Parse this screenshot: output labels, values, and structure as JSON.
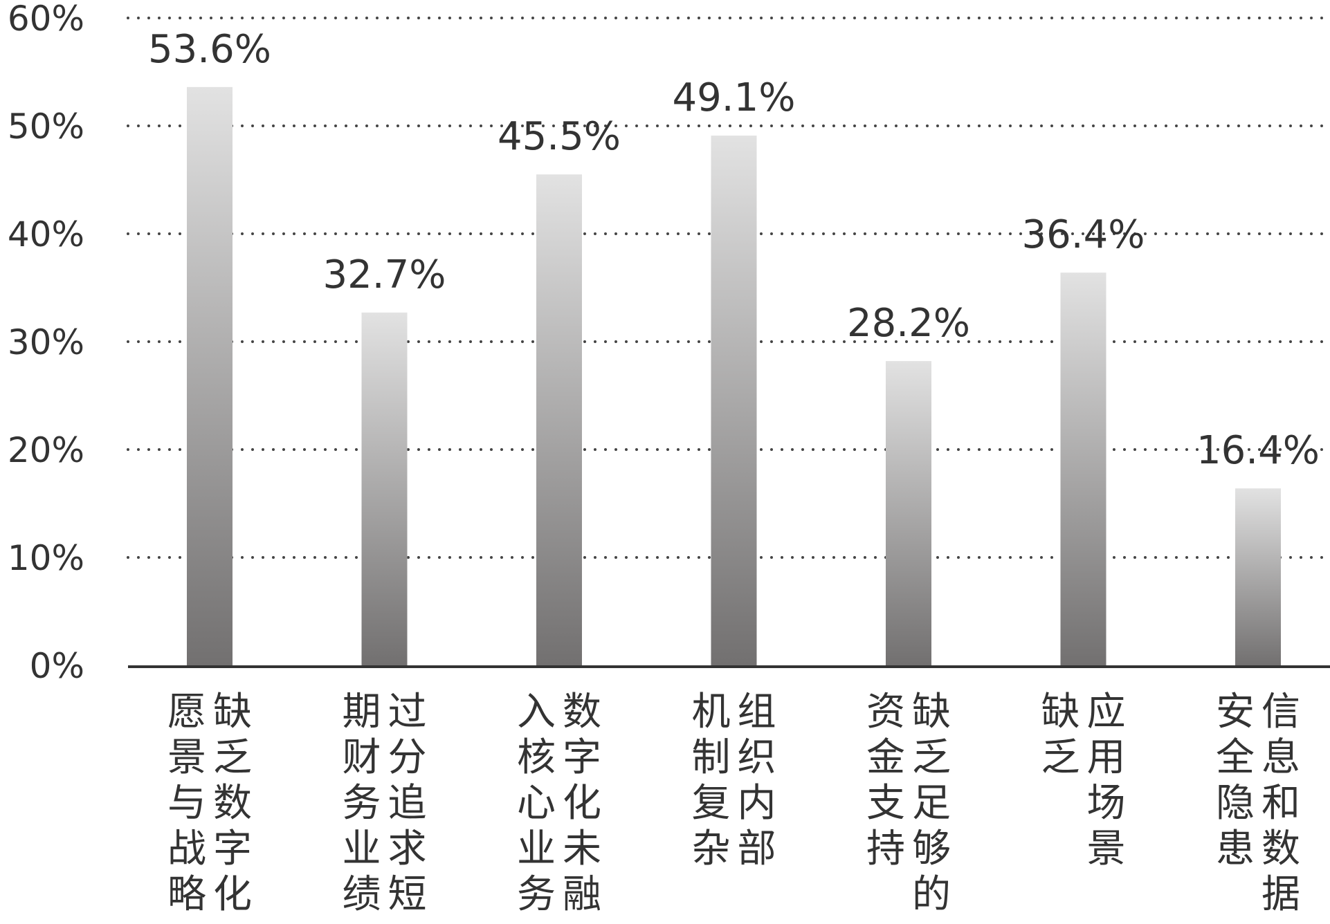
{
  "chart_data": {
    "type": "bar",
    "title": "",
    "xlabel": "",
    "ylabel": "",
    "ylim": [
      0,
      60
    ],
    "yticks": [
      0,
      10,
      20,
      30,
      40,
      50,
      60
    ],
    "ytick_labels": [
      "0%",
      "10%",
      "20%",
      "30%",
      "40%",
      "50%",
      "60%"
    ],
    "grid": "horizontal dotted",
    "legend": "none",
    "categories": [
      "缺乏数字化愿景与战略",
      "过分追求短期财务业绩",
      "数字化未融入核心业务",
      "组织内部机制复杂",
      "缺乏足够的资金支持",
      "应用场景缺乏",
      "信息和数据安全隐患"
    ],
    "category_label_columns": [
      [
        "缺乏数字化",
        "愿景与战略"
      ],
      [
        "过分追求短",
        "期财务业绩"
      ],
      [
        "数字化未融",
        "入核心业务"
      ],
      [
        "组织内部",
        "机制复杂"
      ],
      [
        "缺乏足够的",
        "资金支持"
      ],
      [
        "应用场景",
        "缺乏"
      ],
      [
        "信息和数据",
        "安全隐患"
      ]
    ],
    "values": [
      53.6,
      32.7,
      45.5,
      49.1,
      28.2,
      36.4,
      16.4
    ],
    "value_labels": [
      "53.6%",
      "32.7%",
      "45.5%",
      "49.1%",
      "28.2%",
      "36.4%",
      "16.4%"
    ],
    "colors": {
      "bar_top": "#e2e2e2",
      "bar_bottom": "#727070",
      "axis": "#333333",
      "grid": "#444444",
      "text": "#333333"
    }
  }
}
